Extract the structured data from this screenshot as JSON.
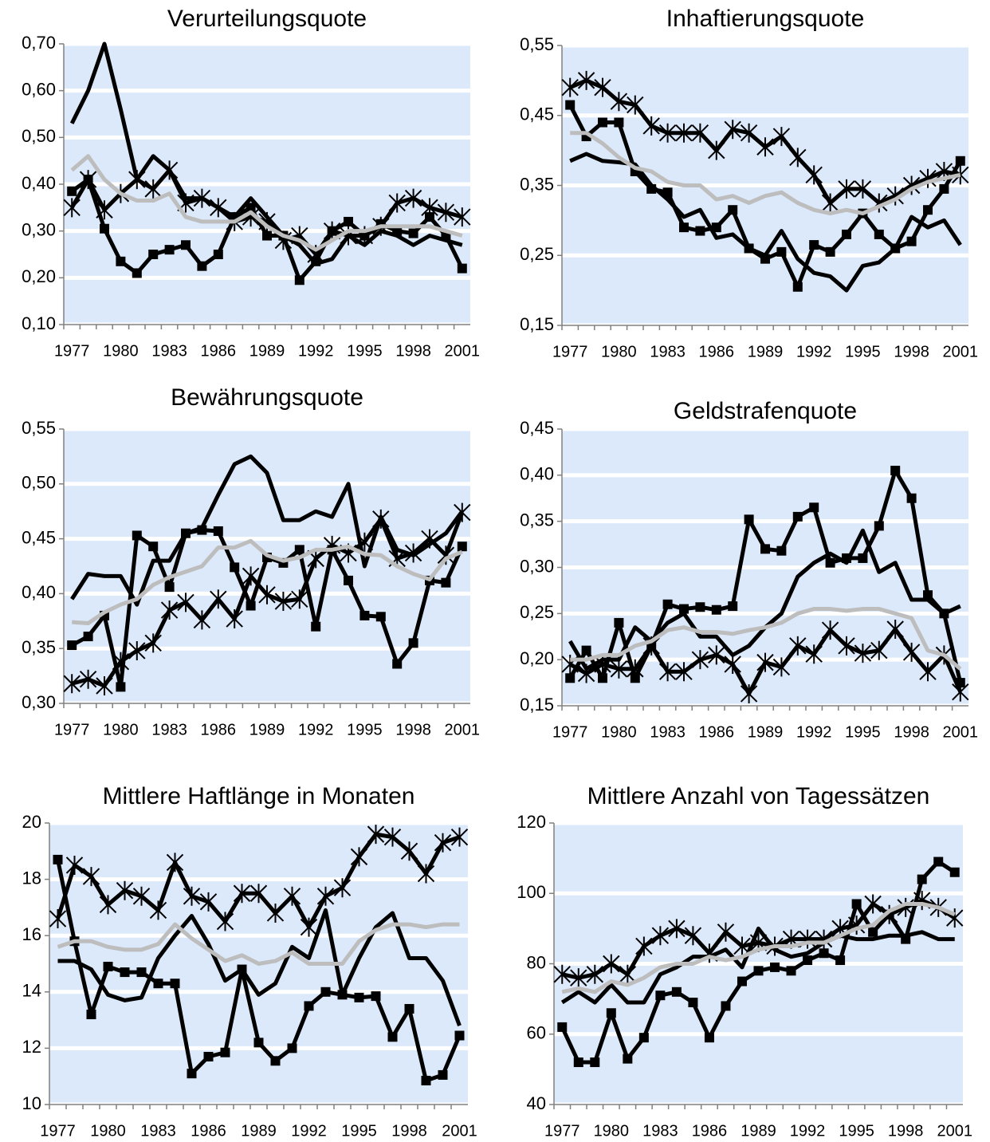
{
  "chart_data": [
    {
      "type": "line",
      "title": "Verurteilungsquote",
      "categories": [
        1977,
        null,
        null,
        1980,
        null,
        null,
        1983,
        null,
        null,
        1986,
        null,
        null,
        1989,
        null,
        null,
        1992,
        null,
        null,
        1995,
        null,
        null,
        1998,
        null,
        null,
        2001
      ],
      "ylim": [
        0.1,
        0.7
      ],
      "yticks": [
        {
          "value": 0.1,
          "label": "0,10"
        },
        {
          "value": 0.2,
          "label": "0,20"
        },
        {
          "value": 0.3,
          "label": "0,30"
        },
        {
          "value": 0.4,
          "label": "0,40"
        },
        {
          "value": 0.5,
          "label": "0,50"
        },
        {
          "value": 0.6,
          "label": "0,60"
        },
        {
          "value": 0.7,
          "label": "0,70"
        }
      ],
      "grid": true,
      "background": "#dce9fb",
      "series": [
        {
          "color": "#000000",
          "marker": "none",
          "values": [
            0.53,
            0.6,
            0.7,
            0.56,
            0.41,
            0.46,
            0.43,
            0.37,
            0.37,
            0.35,
            0.33,
            0.37,
            0.33,
            0.29,
            0.27,
            0.23,
            0.24,
            0.29,
            0.27,
            0.3,
            0.29,
            0.27,
            0.29,
            0.28,
            0.27
          ]
        },
        {
          "color": "#000000",
          "marker": "square",
          "values": [
            0.385,
            0.41,
            0.305,
            0.235,
            0.21,
            0.25,
            0.26,
            0.27,
            0.225,
            0.25,
            0.33,
            0.35,
            0.29,
            0.29,
            0.195,
            0.235,
            0.3,
            0.32,
            0.29,
            0.315,
            0.3,
            0.295,
            0.33,
            0.29,
            0.22
          ]
        },
        {
          "color": "#000000",
          "marker": "star",
          "values": [
            0.35,
            0.41,
            0.345,
            0.38,
            0.41,
            0.39,
            0.43,
            0.36,
            0.37,
            0.35,
            0.32,
            0.33,
            0.32,
            0.28,
            0.29,
            0.25,
            0.3,
            0.29,
            0.29,
            0.31,
            0.36,
            0.37,
            0.35,
            0.34,
            0.33
          ]
        },
        {
          "color": "#bdbdbd",
          "marker": "none",
          "values": [
            0.43,
            0.46,
            0.41,
            0.38,
            0.365,
            0.365,
            0.38,
            0.33,
            0.32,
            0.32,
            0.32,
            0.34,
            0.31,
            0.29,
            0.28,
            0.26,
            0.28,
            0.3,
            0.3,
            0.31,
            0.31,
            0.31,
            0.31,
            0.3,
            0.29
          ]
        }
      ]
    },
    {
      "type": "line",
      "title": "Inhaftierungsquote",
      "categories": [
        1977,
        null,
        null,
        1980,
        null,
        null,
        1983,
        null,
        null,
        1986,
        null,
        null,
        1989,
        null,
        null,
        1992,
        null,
        null,
        1995,
        null,
        null,
        1998,
        null,
        null,
        2001
      ],
      "ylim": [
        0.15,
        0.55
      ],
      "yticks": [
        {
          "value": 0.15,
          "label": "0,15"
        },
        {
          "value": 0.25,
          "label": "0,25"
        },
        {
          "value": 0.35,
          "label": "0,35"
        },
        {
          "value": 0.45,
          "label": "0,45"
        },
        {
          "value": 0.55,
          "label": "0,55"
        }
      ],
      "grid": true,
      "background": "#dce9fb",
      "series": [
        {
          "color": "#000000",
          "marker": "square",
          "values": [
            0.465,
            0.42,
            0.44,
            0.44,
            0.37,
            0.345,
            0.34,
            0.29,
            0.285,
            0.29,
            0.315,
            0.26,
            0.245,
            0.255,
            0.205,
            0.265,
            0.255,
            0.28,
            0.31,
            0.28,
            0.26,
            0.27,
            0.315,
            0.345,
            0.385
          ]
        },
        {
          "color": "#000000",
          "marker": "none",
          "values": [
            0.385,
            0.395,
            0.385,
            0.383,
            0.38,
            0.35,
            0.33,
            0.305,
            0.315,
            0.275,
            0.28,
            0.26,
            0.25,
            0.285,
            0.245,
            0.225,
            0.22,
            0.2,
            0.235,
            0.24,
            0.26,
            0.305,
            0.29,
            0.3,
            0.265
          ]
        },
        {
          "color": "#000000",
          "marker": "star",
          "values": [
            0.49,
            0.5,
            0.49,
            0.47,
            0.465,
            0.435,
            0.425,
            0.425,
            0.425,
            0.4,
            0.43,
            0.425,
            0.405,
            0.42,
            0.39,
            0.365,
            0.325,
            0.345,
            0.345,
            0.325,
            0.335,
            0.35,
            0.36,
            0.37,
            0.365
          ]
        },
        {
          "color": "#bdbdbd",
          "marker": "none",
          "values": [
            0.425,
            0.425,
            0.41,
            0.39,
            0.375,
            0.37,
            0.355,
            0.35,
            0.35,
            0.33,
            0.335,
            0.325,
            0.335,
            0.34,
            0.325,
            0.315,
            0.31,
            0.315,
            0.31,
            0.32,
            0.33,
            0.345,
            0.355,
            0.36,
            0.365
          ]
        }
      ]
    },
    {
      "type": "line",
      "title": "Bewährungsquote",
      "categories": [
        1977,
        null,
        null,
        1980,
        null,
        null,
        1983,
        null,
        null,
        1986,
        null,
        null,
        1989,
        null,
        null,
        1992,
        null,
        null,
        1995,
        null,
        null,
        1998,
        null,
        null,
        2001
      ],
      "ylim": [
        0.3,
        0.55
      ],
      "yticks": [
        {
          "value": 0.3,
          "label": "0,30"
        },
        {
          "value": 0.35,
          "label": "0,35"
        },
        {
          "value": 0.4,
          "label": "0,40"
        },
        {
          "value": 0.45,
          "label": "0,45"
        },
        {
          "value": 0.5,
          "label": "0,50"
        },
        {
          "value": 0.55,
          "label": "0,55"
        }
      ],
      "grid": true,
      "background": "#dce9fb",
      "series": [
        {
          "color": "#000000",
          "marker": "none",
          "values": [
            0.395,
            0.418,
            0.416,
            0.416,
            0.39,
            0.43,
            0.43,
            0.455,
            0.46,
            0.49,
            0.518,
            0.525,
            0.51,
            0.467,
            0.467,
            0.475,
            0.47,
            0.5,
            0.425,
            0.47,
            0.44,
            0.435,
            0.445,
            0.455,
            0.475
          ]
        },
        {
          "color": "#000000",
          "marker": "square",
          "values": [
            0.353,
            0.361,
            0.38,
            0.315,
            0.453,
            0.443,
            0.406,
            0.455,
            0.458,
            0.457,
            0.424,
            0.389,
            0.433,
            0.428,
            0.44,
            0.37,
            0.44,
            0.412,
            0.38,
            0.379,
            0.336,
            0.355,
            0.412,
            0.41,
            0.443
          ]
        },
        {
          "color": "#000000",
          "marker": "star",
          "values": [
            0.318,
            0.322,
            0.316,
            0.338,
            0.348,
            0.355,
            0.385,
            0.392,
            0.376,
            0.395,
            0.377,
            0.416,
            0.399,
            0.393,
            0.395,
            0.432,
            0.444,
            0.437,
            0.447,
            0.468,
            0.432,
            0.437,
            0.45,
            0.435,
            0.474
          ]
        },
        {
          "color": "#bdbdbd",
          "marker": "none",
          "values": [
            0.374,
            0.373,
            0.383,
            0.39,
            0.395,
            0.408,
            0.415,
            0.42,
            0.425,
            0.442,
            0.442,
            0.448,
            0.435,
            0.43,
            0.433,
            0.44,
            0.44,
            0.443,
            0.436,
            0.435,
            0.425,
            0.418,
            0.413,
            0.432,
            0.438
          ]
        }
      ]
    },
    {
      "type": "line",
      "title": "Geldstrafenquote",
      "categories": [
        1977,
        null,
        null,
        1980,
        null,
        null,
        1983,
        null,
        null,
        1986,
        null,
        null,
        1989,
        null,
        null,
        1992,
        null,
        null,
        1995,
        null,
        null,
        1998,
        null,
        null,
        2001
      ],
      "ylim": [
        0.15,
        0.45
      ],
      "yticks": [
        {
          "value": 0.15,
          "label": "0,15"
        },
        {
          "value": 0.2,
          "label": "0,20"
        },
        {
          "value": 0.25,
          "label": "0,25"
        },
        {
          "value": 0.3,
          "label": "0,30"
        },
        {
          "value": 0.35,
          "label": "0,35"
        },
        {
          "value": 0.4,
          "label": "0,40"
        },
        {
          "value": 0.45,
          "label": "0,45"
        }
      ],
      "grid": true,
      "background": "#dce9fb",
      "series": [
        {
          "color": "#000000",
          "marker": "square",
          "values": [
            0.18,
            0.21,
            0.18,
            0.24,
            0.18,
            0.215,
            0.26,
            0.255,
            0.257,
            0.254,
            0.258,
            0.352,
            0.32,
            0.318,
            0.355,
            0.365,
            0.305,
            0.31,
            0.31,
            0.345,
            0.405,
            0.375,
            0.27,
            0.25,
            0.175
          ]
        },
        {
          "color": "#000000",
          "marker": "none",
          "values": [
            0.22,
            0.19,
            0.2,
            0.2,
            0.235,
            0.22,
            0.24,
            0.25,
            0.225,
            0.225,
            0.205,
            0.215,
            0.235,
            0.25,
            0.29,
            0.305,
            0.315,
            0.305,
            0.34,
            0.295,
            0.305,
            0.265,
            0.265,
            0.25,
            0.258
          ]
        },
        {
          "color": "#000000",
          "marker": "star",
          "values": [
            0.195,
            0.185,
            0.195,
            0.19,
            0.19,
            0.215,
            0.187,
            0.187,
            0.2,
            0.205,
            0.195,
            0.163,
            0.197,
            0.192,
            0.215,
            0.206,
            0.232,
            0.215,
            0.207,
            0.21,
            0.233,
            0.208,
            0.187,
            0.205,
            0.165
          ]
        },
        {
          "color": "#bdbdbd",
          "marker": "none",
          "values": [
            0.2,
            0.2,
            0.205,
            0.205,
            0.215,
            0.22,
            0.232,
            0.235,
            0.23,
            0.23,
            0.228,
            0.232,
            0.235,
            0.24,
            0.25,
            0.255,
            0.255,
            0.253,
            0.255,
            0.255,
            0.25,
            0.245,
            0.21,
            0.205,
            0.19
          ]
        }
      ]
    },
    {
      "type": "line",
      "title": "Mittlere Haftlänge in Monaten",
      "categories": [
        1977,
        null,
        null,
        1980,
        null,
        null,
        1983,
        null,
        null,
        1986,
        null,
        null,
        1989,
        null,
        null,
        1992,
        null,
        null,
        1995,
        null,
        null,
        1998,
        null,
        null,
        2001
      ],
      "ylim": [
        10,
        20
      ],
      "yticks": [
        10,
        12,
        14,
        16,
        18,
        20
      ],
      "grid": true,
      "background": "#dce9fb",
      "series": [
        {
          "color": "#000000",
          "marker": "square",
          "values": [
            18.7,
            15.8,
            13.2,
            14.9,
            14.7,
            14.7,
            14.3,
            14.3,
            11.1,
            11.7,
            11.85,
            14.8,
            12.2,
            11.55,
            12.0,
            13.5,
            14.0,
            13.9,
            13.8,
            13.85,
            12.4,
            13.4,
            10.85,
            11.05,
            12.45
          ]
        },
        {
          "color": "#000000",
          "marker": "none",
          "values": [
            15.1,
            15.1,
            14.8,
            13.9,
            13.7,
            13.8,
            15.2,
            16.0,
            16.7,
            15.7,
            14.4,
            14.8,
            13.9,
            14.3,
            15.6,
            15.2,
            16.9,
            13.9,
            15.2,
            16.3,
            16.8,
            15.2,
            15.2,
            14.4,
            12.8
          ]
        },
        {
          "color": "#000000",
          "marker": "star",
          "values": [
            16.6,
            18.5,
            18.1,
            17.1,
            17.6,
            17.4,
            16.9,
            18.6,
            17.4,
            17.2,
            16.5,
            17.5,
            17.5,
            16.8,
            17.4,
            16.3,
            17.4,
            17.7,
            18.8,
            19.6,
            19.5,
            19.0,
            18.2,
            19.3,
            19.5
          ]
        },
        {
          "color": "#bdbdbd",
          "marker": "none",
          "values": [
            15.6,
            15.8,
            15.8,
            15.6,
            15.5,
            15.5,
            15.7,
            16.4,
            15.9,
            15.5,
            15.1,
            15.3,
            15.0,
            15.1,
            15.4,
            15.0,
            15.0,
            15.0,
            15.8,
            16.2,
            16.4,
            16.4,
            16.3,
            16.4,
            16.4
          ]
        }
      ]
    },
    {
      "type": "line",
      "title": "Mittlere Anzahl von Tagessätzen",
      "categories": [
        1977,
        null,
        null,
        1980,
        null,
        null,
        1983,
        null,
        null,
        1986,
        null,
        null,
        1989,
        null,
        null,
        1992,
        null,
        null,
        1995,
        null,
        null,
        1998,
        null,
        null,
        2001
      ],
      "ylim": [
        40,
        120
      ],
      "yticks": [
        40,
        60,
        80,
        100,
        120
      ],
      "grid": true,
      "background": "#dce9fb",
      "series": [
        {
          "color": "#000000",
          "marker": "square",
          "values": [
            62,
            52,
            52,
            66,
            53,
            59,
            71,
            72,
            69,
            59,
            68,
            75,
            78,
            79,
            78,
            81,
            83,
            81,
            97,
            89,
            94,
            87,
            104,
            109,
            106
          ]
        },
        {
          "color": "#000000",
          "marker": "none",
          "values": [
            69,
            72,
            69,
            74,
            69,
            69,
            77,
            79,
            82,
            82,
            84,
            79,
            90,
            84,
            82,
            83,
            86,
            88,
            87,
            87,
            88,
            88,
            89,
            87,
            87
          ]
        },
        {
          "color": "#000000",
          "marker": "star",
          "values": [
            77,
            76,
            77,
            80,
            77,
            85,
            88,
            90,
            88,
            83,
            89,
            85,
            86,
            85,
            87,
            87,
            87,
            90,
            91,
            97,
            94,
            96,
            98,
            96,
            93
          ]
        },
        {
          "color": "#bdbdbd",
          "marker": "none",
          "values": [
            72,
            73,
            72,
            75,
            74,
            76,
            79,
            80,
            80,
            82,
            81,
            82,
            84,
            85,
            85,
            86,
            86,
            88,
            90,
            91,
            95,
            97,
            97,
            96,
            94
          ]
        }
      ]
    }
  ]
}
